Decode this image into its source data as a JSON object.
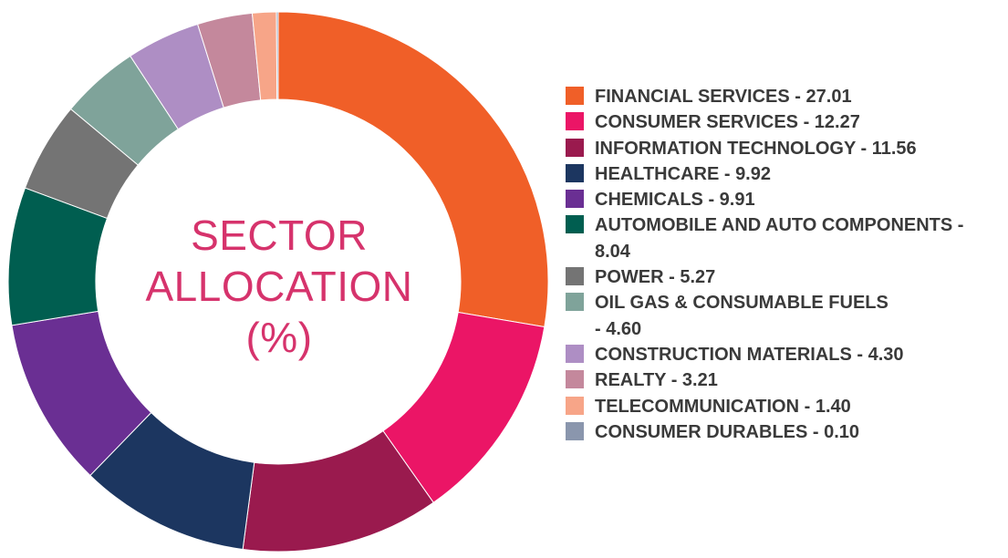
{
  "chart_data": {
    "type": "pie",
    "style": "donut",
    "center_label": [
      "SECTOR",
      "ALLOCATION",
      "(%)"
    ],
    "legend_placement": "right",
    "slices": [
      {
        "name": "FINANCIAL SERVICES",
        "value": 27.01,
        "label": "FINANCIAL SERVICES - 27.01",
        "color": "#f05f28"
      },
      {
        "name": "CONSUMER SERVICES",
        "value": 12.27,
        "label": "CONSUMER SERVICES - 12.27",
        "color": "#eb1566"
      },
      {
        "name": "INFORMATION TECHNOLOGY",
        "value": 11.56,
        "label": "INFORMATION TECHNOLOGY - 11.56",
        "color": "#9a1a4e"
      },
      {
        "name": "HEALTHCARE",
        "value": 9.92,
        "label": "HEALTHCARE - 9.92",
        "color": "#1c3660"
      },
      {
        "name": "CHEMICALS",
        "value": 9.91,
        "label": "CHEMICALS - 9.91",
        "color": "#6a2f93"
      },
      {
        "name": "AUTOMOBILE AND AUTO COMPONENTS",
        "value": 8.04,
        "label": "AUTOMOBILE AND AUTO COMPONENTS - 8.04",
        "color": "#005e50"
      },
      {
        "name": "POWER",
        "value": 5.27,
        "label": "POWER - 5.27",
        "color": "#747474"
      },
      {
        "name": "OIL GAS & CONSUMABLE FUELS",
        "value": 4.6,
        "label": "OIL GAS & CONSUMABLE FUELS - 4.60",
        "color": "#7fa39a"
      },
      {
        "name": "CONSTRUCTION MATERIALS",
        "value": 4.3,
        "label": "CONSTRUCTION MATERIALS - 4.30",
        "color": "#ae8ec4"
      },
      {
        "name": "REALTY",
        "value": 3.21,
        "label": "REALTY - 3.21",
        "color": "#c4889c"
      },
      {
        "name": "TELECOMMUNICATION",
        "value": 1.4,
        "label": "TELECOMMUNICATION - 1.40",
        "color": "#f7a588"
      },
      {
        "name": "CONSUMER DURABLES",
        "value": 0.1,
        "label": "CONSUMER DURABLES - 0.10",
        "color": "#8a96ad"
      }
    ]
  }
}
